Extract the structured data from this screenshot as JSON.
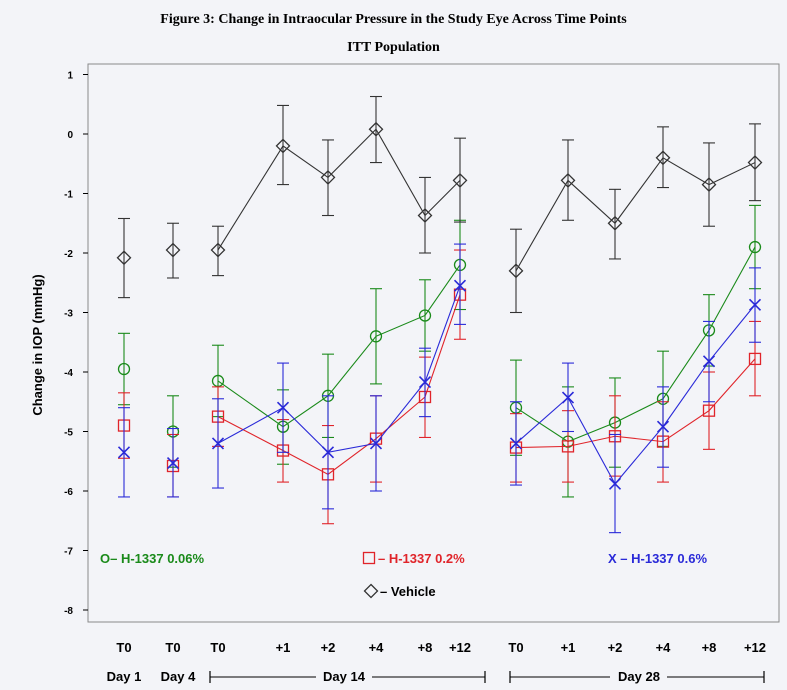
{
  "figure": {
    "title": "Figure 3:  Change in Intraocular Pressure in the Study Eye Across Time Points",
    "subtitle": "ITT Population"
  },
  "chart_data": {
    "type": "line",
    "ylabel": "Change in IOP (mmHg)",
    "ylim": [
      -8,
      1
    ],
    "yticks": [
      1,
      0,
      -1,
      -2,
      -3,
      -4,
      -5,
      -6,
      -7,
      -8
    ],
    "grid": false,
    "x_tick_labels": [
      "T0",
      "T0",
      "T0",
      "+1",
      "+2",
      "+4",
      "+8",
      "+12",
      "T0",
      "+1",
      "+2",
      "+4",
      "+8",
      "+12"
    ],
    "day_labels": [
      "Day 1",
      "Day 4",
      "Day 14",
      "Day 28"
    ],
    "series": [
      {
        "name": "H-1337 0.06%",
        "legend_text": "O– H-1337 0.06%",
        "color": "#1a8a1a",
        "marker": "circle",
        "values": [
          -3.95,
          -5.0,
          -4.15,
          -4.92,
          -4.4,
          -3.4,
          -3.05,
          -2.2,
          -4.6,
          -5.17,
          -4.85,
          -4.45,
          -3.3,
          -1.9
        ],
        "lower": [
          -4.55,
          -5.6,
          -4.75,
          -5.55,
          -5.1,
          -4.2,
          -3.65,
          -2.95,
          -5.4,
          -6.1,
          -5.6,
          -5.25,
          -3.9,
          -2.6
        ],
        "upper": [
          -3.35,
          -4.4,
          -3.55,
          -4.3,
          -3.7,
          -2.6,
          -2.45,
          -1.45,
          -3.8,
          -4.25,
          -4.1,
          -3.65,
          -2.7,
          -1.2
        ]
      },
      {
        "name": "H-1337 0.2%",
        "legend_text": "– H-1337 0.2%",
        "color": "#e0242a",
        "marker": "square",
        "values": [
          -4.9,
          -5.58,
          -4.75,
          -5.32,
          -5.72,
          -5.12,
          -4.42,
          -2.7,
          -5.27,
          -5.25,
          -5.08,
          -5.17,
          -4.65,
          -3.78
        ],
        "lower": [
          -5.45,
          -6.1,
          -5.25,
          -5.85,
          -6.55,
          -5.85,
          -5.1,
          -3.45,
          -5.85,
          -5.85,
          -5.75,
          -5.85,
          -5.3,
          -4.4
        ],
        "upper": [
          -4.35,
          -5.05,
          -4.25,
          -4.8,
          -4.9,
          -4.4,
          -3.75,
          -1.95,
          -4.7,
          -4.65,
          -4.4,
          -4.5,
          -4.0,
          -3.15
        ]
      },
      {
        "name": "H-1337 0.6%",
        "legend_text": "X – H-1337 0.6%",
        "color": "#2a2ad8",
        "marker": "x",
        "values": [
          -5.35,
          -5.53,
          -5.2,
          -4.6,
          -5.35,
          -5.2,
          -4.17,
          -2.55,
          -5.2,
          -4.43,
          -5.88,
          -4.92,
          -3.82,
          -2.87
        ],
        "lower": [
          -6.1,
          -6.1,
          -5.95,
          -5.35,
          -6.3,
          -6.0,
          -4.75,
          -3.2,
          -5.9,
          -5.0,
          -6.7,
          -5.6,
          -4.5,
          -3.5
        ],
        "upper": [
          -4.6,
          -4.95,
          -4.45,
          -3.85,
          -4.4,
          -4.4,
          -3.6,
          -1.85,
          -4.5,
          -3.85,
          -5.05,
          -4.25,
          -3.15,
          -2.25
        ]
      },
      {
        "name": "Vehicle",
        "legend_text": "– Vehicle",
        "color": "#333333",
        "marker": "diamond",
        "values": [
          -2.08,
          -1.95,
          -1.95,
          -0.2,
          -0.73,
          0.08,
          -1.37,
          -0.78,
          -2.3,
          -0.78,
          -1.5,
          -0.4,
          -0.85,
          -0.48
        ],
        "lower": [
          -2.75,
          -2.42,
          -2.38,
          -0.85,
          -1.37,
          -0.48,
          -2.0,
          -1.48,
          -3.0,
          -1.45,
          -2.1,
          -0.9,
          -1.55,
          -1.12
        ],
        "upper": [
          -1.42,
          -1.5,
          -1.55,
          0.48,
          -0.1,
          0.63,
          -0.73,
          -0.07,
          -1.6,
          -0.1,
          -0.93,
          0.12,
          -0.15,
          0.17
        ]
      }
    ]
  }
}
